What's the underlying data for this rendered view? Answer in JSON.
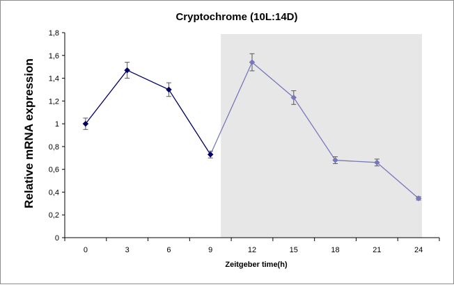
{
  "chart_data": {
    "type": "line",
    "title": "Cryptochrome (10L:14D)",
    "xlabel": "Zeitgeber time(h)",
    "ylabel": "Relative mRNA expression",
    "x": [
      0,
      3,
      6,
      9,
      12,
      15,
      18,
      21,
      24
    ],
    "y": [
      1.0,
      1.47,
      1.3,
      0.73,
      1.54,
      1.23,
      0.68,
      0.66,
      0.345
    ],
    "error": [
      0.05,
      0.07,
      0.06,
      0.03,
      0.075,
      0.06,
      0.03,
      0.03,
      0.015
    ],
    "x_ticks": [
      "0",
      "3",
      "6",
      "9",
      "12",
      "15",
      "18",
      "21",
      "24"
    ],
    "y_ticks": [
      "0",
      "0,2",
      "0,4",
      "0,6",
      "0,8",
      "1",
      "1,2",
      "1,4",
      "1,6",
      "1,8"
    ],
    "ylim": [
      0,
      1.8
    ],
    "shaded_region": {
      "x_start": 9.75,
      "x_end": 24.25,
      "color": "#e7e7e7"
    },
    "grid": false,
    "colors": {
      "light": "#000066",
      "dark": "#7777bb",
      "error_bar": "#555555"
    }
  }
}
